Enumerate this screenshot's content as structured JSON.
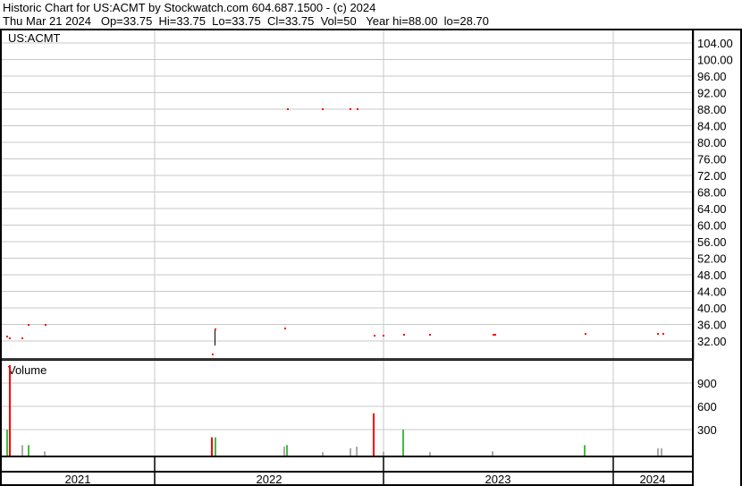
{
  "header": {
    "title": "Historic Chart for US:ACMT by Stockwatch.com 604.687.1500 - (c) 2024",
    "quote": "Thu Mar 21 2024   Op=33.75  Hi=33.75  Lo=33.75  Cl=33.75  Vol=50   Year hi=88.00  lo=28.70"
  },
  "chart_data": {
    "type": "scatter",
    "symbol_label": "US:ACMT",
    "volume_label": "Volume",
    "price_axis": {
      "range": [
        28,
        106
      ],
      "ticks": [
        "104.00",
        "100.00",
        "96.00",
        "92.00",
        "88.00",
        "84.00",
        "80.00",
        "76.00",
        "72.00",
        "68.00",
        "64.00",
        "60.00",
        "56.00",
        "52.00",
        "48.00",
        "44.00",
        "40.00",
        "36.00",
        "32.00"
      ],
      "position": "right",
      "grid": true
    },
    "volume_axis": {
      "range": [
        0,
        1200
      ],
      "ticks": [
        "900",
        "600",
        "300"
      ],
      "position": "right",
      "grid": true
    },
    "x_axis": {
      "range": [
        "2021-05-01",
        "2024-05-05"
      ],
      "year_labels": [
        "2021",
        "2022",
        "2023",
        "2024"
      ]
    },
    "colors": {
      "price": "#ff0000",
      "up_volume": "#44bb44",
      "down_volume": "#ff0000",
      "flat_volume": "#aaaaaa",
      "grid": "#c8c8c8",
      "range_bar": "#000000"
    },
    "price_points": [
      {
        "date": "2021-05-10",
        "price": 33.1
      },
      {
        "date": "2021-05-14",
        "price": 32.6
      },
      {
        "date": "2021-06-03",
        "price": 32.6
      },
      {
        "date": "2021-06-13",
        "price": 35.9
      },
      {
        "date": "2021-07-09",
        "price": 35.9
      },
      {
        "date": "2022-04-02",
        "price": 28.8
      },
      {
        "date": "2022-04-07",
        "price": 34.8
      },
      {
        "date": "2022-07-27",
        "price": 35.0
      },
      {
        "date": "2022-07-31",
        "price": 88.0
      },
      {
        "date": "2022-09-25",
        "price": 88.0
      },
      {
        "date": "2022-11-08",
        "price": 88.0
      },
      {
        "date": "2022-11-19",
        "price": 88.0
      },
      {
        "date": "2022-12-16",
        "price": 33.3
      },
      {
        "date": "2022-12-31",
        "price": 33.3
      },
      {
        "date": "2023-02-01",
        "price": 33.5
      },
      {
        "date": "2023-03-15",
        "price": 33.5
      },
      {
        "date": "2023-06-24",
        "price": 33.5
      },
      {
        "date": "2023-06-27",
        "price": 33.5
      },
      {
        "date": "2023-11-18",
        "price": 33.75
      },
      {
        "date": "2024-03-12",
        "price": 33.75
      },
      {
        "date": "2024-03-21",
        "price": 33.75
      }
    ],
    "range_bars": [
      {
        "date": "2022-04-07",
        "high": 35.0,
        "low": 30.9
      }
    ],
    "volume_bars": [
      {
        "date": "2021-05-10",
        "volume": 300,
        "dir": "up"
      },
      {
        "date": "2021-05-13",
        "volume": 1130,
        "dir": "down"
      },
      {
        "date": "2021-06-02",
        "volume": 100,
        "dir": "flat"
      },
      {
        "date": "2021-06-12",
        "volume": 100,
        "dir": "up"
      },
      {
        "date": "2021-07-08",
        "volume": 20,
        "dir": "flat"
      },
      {
        "date": "2022-04-01",
        "volume": 200,
        "dir": "down"
      },
      {
        "date": "2022-04-06",
        "volume": 200,
        "dir": "up"
      },
      {
        "date": "2022-07-26",
        "volume": 80,
        "dir": "flat"
      },
      {
        "date": "2022-07-30",
        "volume": 100,
        "dir": "up"
      },
      {
        "date": "2022-09-25",
        "volume": 10,
        "dir": "flat"
      },
      {
        "date": "2022-11-08",
        "volume": 60,
        "dir": "flat"
      },
      {
        "date": "2022-11-18",
        "volume": 80,
        "dir": "flat"
      },
      {
        "date": "2022-12-15",
        "volume": 510,
        "dir": "down"
      },
      {
        "date": "2022-12-30",
        "volume": 15,
        "dir": "flat"
      },
      {
        "date": "2023-01-31",
        "volume": 300,
        "dir": "up"
      },
      {
        "date": "2023-03-15",
        "volume": 10,
        "dir": "flat"
      },
      {
        "date": "2023-06-23",
        "volume": 20,
        "dir": "flat"
      },
      {
        "date": "2023-11-16",
        "volume": 100,
        "dir": "up"
      },
      {
        "date": "2024-03-12",
        "volume": 60,
        "dir": "flat"
      },
      {
        "date": "2024-03-18",
        "volume": 60,
        "dir": "flat"
      }
    ]
  }
}
